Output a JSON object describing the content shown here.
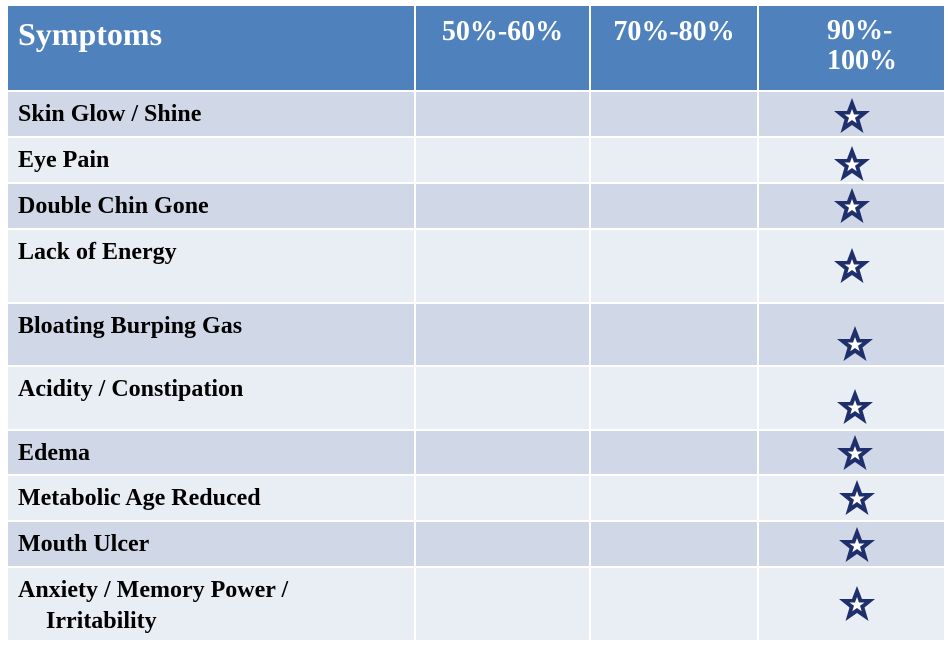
{
  "table": {
    "headers": [
      "Symptoms",
      "50%-60%",
      "70%-80%",
      "90%-100%"
    ],
    "header_line2": "100%",
    "header_line1": "90%-",
    "rows": [
      {
        "symptom": "Skin Glow / Shine",
        "rating": "90%-100%"
      },
      {
        "symptom": "Eye Pain",
        "rating": "90%-100%"
      },
      {
        "symptom": "Double Chin Gone",
        "rating": "90%-100%"
      },
      {
        "symptom": "Lack of Energy",
        "rating": "90%-100%"
      },
      {
        "symptom": "Bloating Burping Gas",
        "rating": "90%-100%"
      },
      {
        "symptom": "Acidity / Constipation",
        "rating": "90%-100%"
      },
      {
        "symptom": "Edema",
        "rating": "90%-100%"
      },
      {
        "symptom": "Metabolic Age Reduced",
        "rating": "90%-100%"
      },
      {
        "symptom": "Mouth Ulcer",
        "rating": "90%-100%"
      },
      {
        "symptom_line1": "Anxiety / Memory Power /",
        "symptom_line2": "Irritability",
        "rating": "90%-100%"
      }
    ]
  },
  "colors": {
    "header_bg": "#4f81bd",
    "row_odd": "#d0d8e8",
    "row_even": "#e9edf4",
    "star_fill": "#1f2f6b"
  },
  "icons": {
    "rating_mark": "star-icon"
  }
}
